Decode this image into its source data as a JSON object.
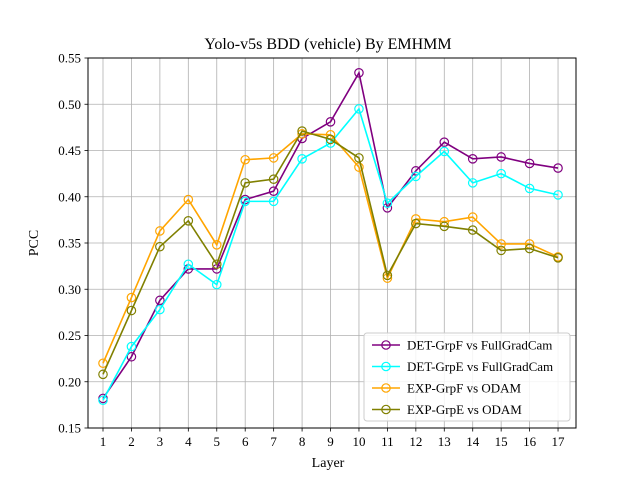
{
  "chart_data": {
    "type": "line",
    "title": "Yolo-v5s BDD (vehicle) By EMHMM",
    "xlabel": "Layer",
    "ylabel": "PCC",
    "x": [
      1,
      2,
      3,
      4,
      5,
      6,
      7,
      8,
      9,
      10,
      11,
      12,
      13,
      14,
      15,
      16,
      17
    ],
    "xticks": [
      "1",
      "2",
      "3",
      "4",
      "5",
      "6",
      "7",
      "8",
      "9",
      "10",
      "11",
      "12",
      "13",
      "14",
      "15",
      "16",
      "17"
    ],
    "ylim": [
      0.15,
      0.55
    ],
    "yticks": [
      "0.15",
      "0.20",
      "0.25",
      "0.30",
      "0.35",
      "0.40",
      "0.45",
      "0.50",
      "0.55"
    ],
    "grid": true,
    "legend_position": "lower-right",
    "series": [
      {
        "name": "DET-GrpF vs FullGradCam",
        "color": "#800080",
        "values": [
          0.182,
          0.227,
          0.288,
          0.322,
          0.322,
          0.397,
          0.406,
          0.463,
          0.481,
          0.534,
          0.388,
          0.428,
          0.459,
          0.441,
          0.443,
          0.436,
          0.431
        ]
      },
      {
        "name": "DET-GrpE vs FullGradCam",
        "color": "#00ffff",
        "values": [
          0.18,
          0.238,
          0.278,
          0.327,
          0.305,
          0.395,
          0.395,
          0.441,
          0.458,
          0.495,
          0.393,
          0.422,
          0.449,
          0.415,
          0.425,
          0.409,
          0.402
        ]
      },
      {
        "name": "EXP-GrpF vs ODAM",
        "color": "#ffa500",
        "values": [
          0.22,
          0.291,
          0.363,
          0.397,
          0.348,
          0.44,
          0.442,
          0.468,
          0.467,
          0.432,
          0.312,
          0.376,
          0.373,
          0.378,
          0.349,
          0.349,
          0.335
        ]
      },
      {
        "name": "EXP-GrpE vs ODAM",
        "color": "#808000",
        "values": [
          0.208,
          0.277,
          0.346,
          0.374,
          0.327,
          0.415,
          0.419,
          0.471,
          0.462,
          0.442,
          0.315,
          0.371,
          0.368,
          0.364,
          0.342,
          0.344,
          0.334
        ]
      }
    ]
  }
}
